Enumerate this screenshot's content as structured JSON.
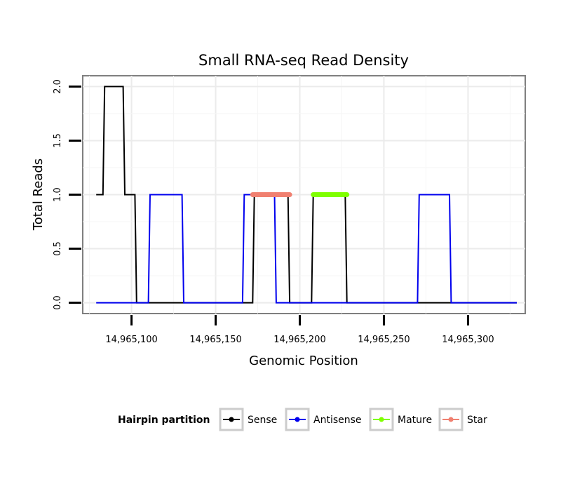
{
  "chart_data": {
    "type": "line",
    "title": "Small RNA-seq Read Density",
    "xlabel": "Genomic Position",
    "ylabel": "Total Reads",
    "xlim": [
      14965071,
      14965334
    ],
    "ylim": [
      -0.1,
      2.1
    ],
    "x_ticks": [
      14965100,
      14965150,
      14965200,
      14965250,
      14965300
    ],
    "x_tick_labels": [
      "14,965,100",
      "14,965,150",
      "14,965,200",
      "14,965,250",
      "14,965,300"
    ],
    "y_ticks": [
      0,
      0.5,
      1,
      1.5,
      2
    ],
    "y_tick_labels": [
      "0.0",
      "0.5",
      "1.0",
      "1.5",
      "2.0"
    ],
    "grid": true,
    "legend": {
      "title": "Hairpin partition",
      "position": "bottom",
      "entries": [
        "Sense",
        "Antisense",
        "Mature",
        "Star"
      ]
    },
    "series": [
      {
        "name": "Sense",
        "color": "#000000",
        "step": true,
        "points": [
          [
            14965079,
            1
          ],
          [
            14965083,
            1
          ],
          [
            14965084,
            2
          ],
          [
            14965095,
            2
          ],
          [
            14965096,
            1
          ],
          [
            14965102,
            1
          ],
          [
            14965103,
            0
          ],
          [
            14965172,
            0
          ],
          [
            14965173,
            1
          ],
          [
            14965193,
            1
          ],
          [
            14965194,
            0
          ],
          [
            14965207,
            0
          ],
          [
            14965208,
            1
          ],
          [
            14965227,
            1
          ],
          [
            14965228,
            0
          ],
          [
            14965329,
            0
          ]
        ]
      },
      {
        "name": "Antisense",
        "color": "#0000ee",
        "step": true,
        "points": [
          [
            14965079,
            0
          ],
          [
            14965110,
            0
          ],
          [
            14965111,
            1
          ],
          [
            14965130,
            1
          ],
          [
            14965131,
            0
          ],
          [
            14965166,
            0
          ],
          [
            14965167,
            1
          ],
          [
            14965185,
            1
          ],
          [
            14965186,
            0
          ],
          [
            14965270,
            0
          ],
          [
            14965271,
            1
          ],
          [
            14965289,
            1
          ],
          [
            14965290,
            0
          ],
          [
            14965329,
            0
          ]
        ]
      },
      {
        "name": "Mature",
        "color": "#7fff00",
        "segment": [
          14965208,
          14965228
        ],
        "value": 1
      },
      {
        "name": "Star",
        "color": "#f08070",
        "segment": [
          14965172,
          14965194
        ],
        "value": 1
      }
    ]
  }
}
